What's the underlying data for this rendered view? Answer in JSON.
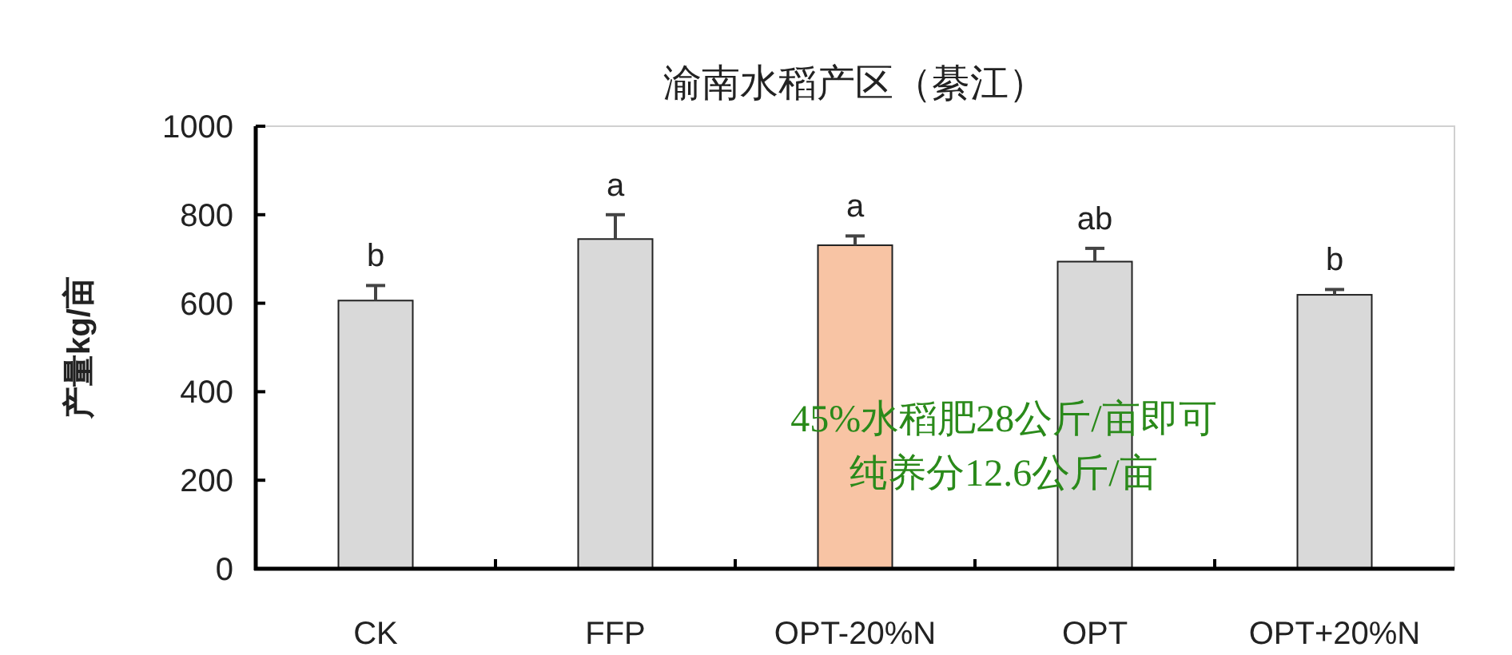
{
  "chart_data": {
    "type": "bar",
    "title": "渝南水稻产区（綦江）",
    "ylabel": "产量kg/亩",
    "categories": [
      "CK",
      "FFP",
      "OPT-20%N",
      "OPT",
      "OPT+20%N"
    ],
    "values": [
      606,
      745,
      731,
      694,
      619
    ],
    "colors": [
      "#d9d9d9",
      "#d9d9d9",
      "#f8c4a4",
      "#d9d9d9",
      "#d9d9d9"
    ],
    "errors": [
      [
        606,
        640
      ],
      [
        745,
        800
      ],
      [
        731,
        752
      ],
      [
        694,
        724
      ],
      [
        619,
        631
      ]
    ],
    "ylim": [
      0,
      1000
    ],
    "yticks": [
      0,
      200,
      400,
      600,
      800,
      1000
    ],
    "grid": false,
    "annotations": [
      {
        "text": "b",
        "x": "CK",
        "y": 640
      },
      {
        "text": "a",
        "x": "FFP",
        "y": 800
      },
      {
        "text": "a",
        "x": "OPT-20%N",
        "y": 752
      },
      {
        "text": "ab",
        "x": "OPT",
        "y": 724
      },
      {
        "text": "b",
        "x": "OPT+20%N",
        "y": 631
      },
      "45%水稻肥28公斤/亩即可",
      "纯养分12.6公斤/亩"
    ]
  }
}
